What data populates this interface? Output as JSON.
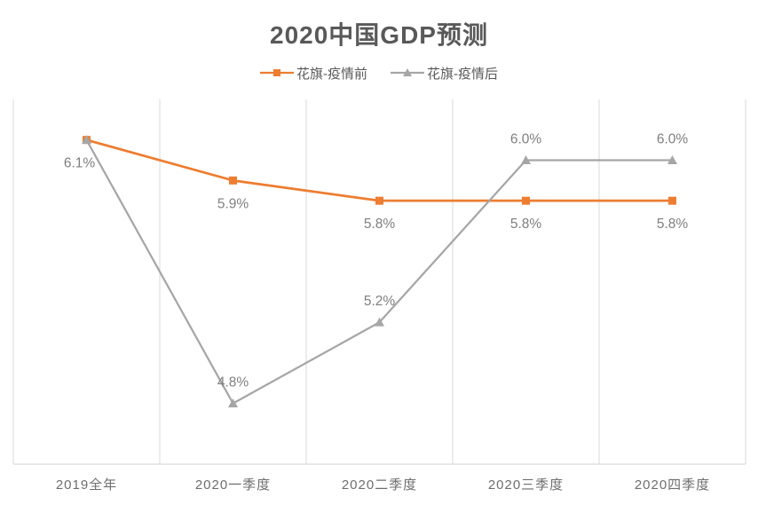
{
  "chart_data": {
    "type": "line",
    "title": "2020中国GDP预测",
    "categories": [
      "2019全年",
      "2020一季度",
      "2020二季度",
      "2020三季度",
      "2020四季度"
    ],
    "series": [
      {
        "name": "花旗-疫情前",
        "color": "#ED7D31",
        "marker": "square",
        "values": [
          6.1,
          5.9,
          5.8,
          5.8,
          5.8
        ],
        "data_labels": [
          "6.1%",
          "5.9%",
          "5.8%",
          "5.8%",
          "5.8%"
        ],
        "label_position": "below"
      },
      {
        "name": "花旗-疫情后",
        "color": "#A6A6A6",
        "marker": "triangle",
        "values": [
          6.1,
          4.8,
          5.2,
          6.0,
          6.0
        ],
        "data_labels": [
          "",
          "4.8%",
          "5.2%",
          "6.0%",
          "6.0%"
        ],
        "label_position": "above"
      }
    ],
    "ylim": [
      4.5,
      6.3
    ],
    "grid": "vertical-only",
    "legend_position": "top",
    "colors": {
      "gridline": "#D9D9D9",
      "axis_line": "#D2D2D2",
      "data_label_text": "#7F7F7F",
      "axis_label_text": "#6E6E6E",
      "title_text": "#595959"
    }
  }
}
